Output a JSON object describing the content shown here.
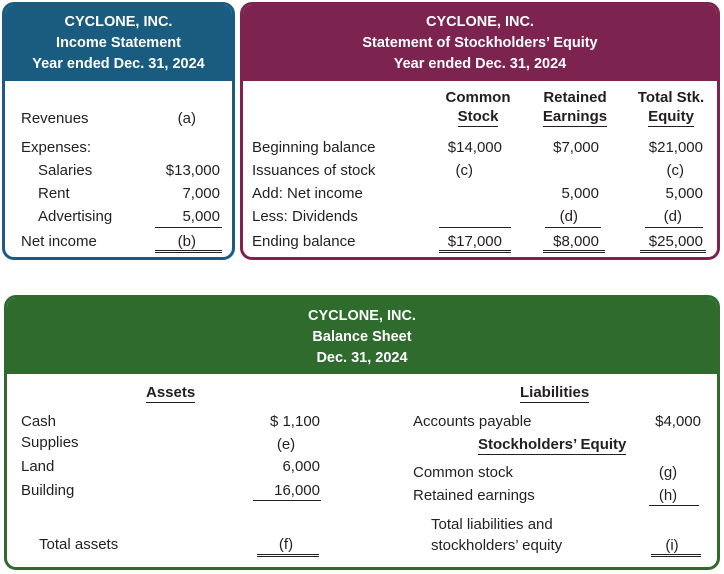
{
  "income_statement": {
    "header": [
      "CYCLONE, INC.",
      "Income Statement",
      "Year ended Dec. 31, 2024"
    ],
    "revenues_label": "Revenues",
    "revenues_value": "(a)",
    "expenses_label": "Expenses:",
    "salaries_label": "Salaries",
    "salaries_value": "$13,000",
    "rent_label": "Rent",
    "rent_value": "7,000",
    "advertising_label": "Advertising",
    "advertising_value": "5,000",
    "net_income_label": "Net income",
    "net_income_value": "(b)"
  },
  "equity_statement": {
    "header": [
      "CYCLONE, INC.",
      "Statement of Stockholders’ Equity",
      "Year ended Dec. 31, 2024"
    ],
    "columns": [
      [
        "Common",
        "Stock"
      ],
      [
        "Retained",
        "Earnings"
      ],
      [
        "Total Stk.",
        "Equity"
      ]
    ],
    "rows": [
      {
        "label": "Beginning balance",
        "cs": "$14,000",
        "re": "$7,000",
        "total": "$21,000"
      },
      {
        "label": "Issuances of stock",
        "cs": "(c)",
        "re": "",
        "total": "(c)"
      },
      {
        "label": "Add: Net income",
        "cs": "",
        "re": "5,000",
        "total": "5,000"
      },
      {
        "label": "Less: Dividends",
        "cs": "",
        "re": "(d)",
        "total": "(d)"
      },
      {
        "label": "Ending balance",
        "cs": "$17,000",
        "re": "$8,000",
        "total": "$25,000"
      }
    ]
  },
  "balance_sheet": {
    "header": [
      "CYCLONE, INC.",
      "Balance Sheet",
      "Dec. 31, 2024"
    ],
    "assets_heading": "Assets",
    "liabilities_heading": "Liabilities",
    "equity_heading": "Stockholders’ Equity",
    "assets": [
      {
        "label": "Cash",
        "value": "$ 1,100"
      },
      {
        "label": "Supplies",
        "value": "(e)"
      },
      {
        "label": "Land",
        "value": "6,000"
      },
      {
        "label": "Building",
        "value": "16,000"
      }
    ],
    "total_assets_label": "Total assets",
    "total_assets_value": "(f)",
    "accounts_payable_label": "Accounts payable",
    "accounts_payable_value": "$4,000",
    "common_stock_label": "Common stock",
    "common_stock_value": "(g)",
    "retained_earnings_label": "Retained earnings",
    "retained_earnings_value": "(h)",
    "total_liab_equity_label": [
      "Total liabilities and",
      "stockholders’ equity"
    ],
    "total_liab_equity_value": "(i)"
  },
  "colors": {
    "income_header": "#195c80",
    "equity_header": "#7d2350",
    "balance_header": "#2e6b2d"
  }
}
